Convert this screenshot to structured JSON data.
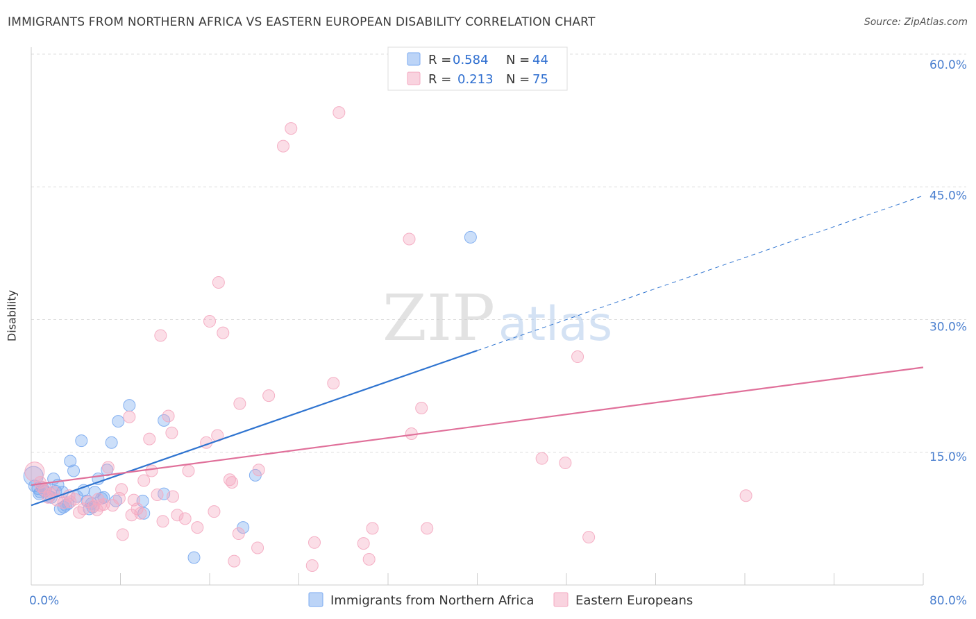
{
  "title": "IMMIGRANTS FROM NORTHERN AFRICA VS EASTERN EUROPEAN DISABILITY CORRELATION CHART",
  "source": "Source: ZipAtlas.com",
  "watermark": {
    "zip": "ZIP",
    "atlas": "atlas"
  },
  "chart_data": {
    "type": "scatter",
    "ylabel": "Disability",
    "xlim": [
      0,
      80
    ],
    "ylim": [
      0,
      60
    ],
    "x_tick_labels": [
      {
        "value": 0,
        "label": "0.0%"
      },
      {
        "value": 80,
        "label": "80.0%"
      }
    ],
    "y_tick_labels": [
      {
        "value": 15,
        "label": "15.0%"
      },
      {
        "value": 30,
        "label": "30.0%"
      },
      {
        "value": 45,
        "label": "45.0%"
      },
      {
        "value": 60,
        "label": "60.0%"
      }
    ],
    "grid": true,
    "legend_placement": "top-center",
    "series": [
      {
        "name": "Immigrants from Northern Africa",
        "color": "#7aaaf0",
        "line_color": "#2f74d0",
        "r_label": "R =",
        "r_value": "0.584",
        "n_label": "N =",
        "n_value": "44",
        "trend": {
          "x0": 0,
          "y0": 9.0,
          "x1": 40,
          "y1": 26.5,
          "dash_to_x": 80,
          "dash_to_y": 44.0
        },
        "points": [
          [
            0.2,
            12.3
          ],
          [
            0.3,
            11.2
          ],
          [
            0.6,
            10.9
          ],
          [
            0.8,
            10.5
          ],
          [
            1.0,
            11.0
          ],
          [
            1.2,
            10.6
          ],
          [
            1.3,
            10.9
          ],
          [
            1.6,
            10.0
          ],
          [
            1.8,
            9.9
          ],
          [
            2.0,
            12.0
          ],
          [
            2.2,
            10.6
          ],
          [
            2.4,
            11.3
          ],
          [
            2.6,
            8.6
          ],
          [
            2.8,
            10.5
          ],
          [
            3.1,
            9.0
          ],
          [
            3.3,
            9.2
          ],
          [
            3.5,
            14.0
          ],
          [
            3.8,
            12.9
          ],
          [
            4.1,
            10.0
          ],
          [
            4.5,
            16.3
          ],
          [
            4.7,
            10.7
          ],
          [
            5.0,
            9.5
          ],
          [
            5.2,
            8.6
          ],
          [
            5.5,
            8.8
          ],
          [
            5.7,
            10.5
          ],
          [
            6.0,
            12.0
          ],
          [
            6.3,
            9.8
          ],
          [
            6.5,
            9.9
          ],
          [
            6.8,
            13.0
          ],
          [
            7.2,
            16.1
          ],
          [
            7.6,
            9.5
          ],
          [
            7.8,
            18.5
          ],
          [
            8.8,
            20.3
          ],
          [
            10.0,
            9.5
          ],
          [
            10.1,
            8.1
          ],
          [
            11.9,
            18.6
          ],
          [
            11.9,
            10.3
          ],
          [
            14.6,
            3.1
          ],
          [
            19.0,
            6.5
          ],
          [
            20.1,
            12.4
          ],
          [
            39.4,
            39.3
          ],
          [
            5.4,
            9.2
          ],
          [
            2.9,
            8.8
          ],
          [
            0.7,
            10.3
          ]
        ]
      },
      {
        "name": "Eastern Europeans",
        "color": "#f4a8c0",
        "line_color": "#e0709a",
        "r_label": "R =",
        "r_value": "0.213",
        "n_label": "N =",
        "n_value": "75",
        "trend": {
          "x0": 0,
          "y0": 11.3,
          "x1": 80,
          "y1": 24.6
        },
        "points": [
          [
            0.3,
            12.8
          ],
          [
            0.8,
            11.6
          ],
          [
            1.2,
            10.7
          ],
          [
            1.7,
            10.3
          ],
          [
            2.3,
            9.6
          ],
          [
            2.9,
            9.3
          ],
          [
            3.4,
            10.1
          ],
          [
            3.9,
            9.7
          ],
          [
            4.3,
            8.2
          ],
          [
            4.7,
            8.6
          ],
          [
            5.1,
            9.4
          ],
          [
            5.6,
            8.9
          ],
          [
            6.0,
            9.7
          ],
          [
            6.5,
            9.1
          ],
          [
            6.9,
            13.3
          ],
          [
            7.3,
            9.0
          ],
          [
            7.9,
            9.8
          ],
          [
            8.1,
            10.8
          ],
          [
            8.2,
            5.7
          ],
          [
            8.8,
            19.0
          ],
          [
            9.2,
            9.6
          ],
          [
            9.5,
            8.6
          ],
          [
            9.8,
            8.1
          ],
          [
            10.1,
            11.8
          ],
          [
            10.6,
            16.5
          ],
          [
            10.8,
            12.9
          ],
          [
            11.3,
            10.2
          ],
          [
            11.6,
            28.2
          ],
          [
            11.8,
            7.2
          ],
          [
            12.3,
            19.1
          ],
          [
            12.6,
            17.2
          ],
          [
            12.7,
            10.0
          ],
          [
            13.8,
            7.5
          ],
          [
            14.1,
            12.9
          ],
          [
            14.9,
            6.5
          ],
          [
            15.7,
            16.1
          ],
          [
            16.0,
            29.8
          ],
          [
            16.4,
            8.3
          ],
          [
            16.7,
            16.9
          ],
          [
            16.8,
            34.2
          ],
          [
            17.2,
            28.5
          ],
          [
            17.8,
            11.9
          ],
          [
            18.0,
            11.6
          ],
          [
            18.2,
            2.7
          ],
          [
            18.6,
            5.8
          ],
          [
            18.7,
            20.5
          ],
          [
            20.3,
            4.2
          ],
          [
            20.4,
            13.0
          ],
          [
            21.3,
            21.4
          ],
          [
            22.6,
            49.6
          ],
          [
            23.3,
            51.6
          ],
          [
            25.2,
            2.2
          ],
          [
            25.4,
            4.8
          ],
          [
            27.1,
            22.8
          ],
          [
            27.6,
            53.4
          ],
          [
            29.8,
            4.7
          ],
          [
            30.3,
            2.9
          ],
          [
            30.6,
            6.4
          ],
          [
            33.9,
            39.1
          ],
          [
            34.1,
            17.1
          ],
          [
            35.0,
            20.0
          ],
          [
            35.5,
            6.4
          ],
          [
            45.8,
            14.3
          ],
          [
            47.9,
            13.8
          ],
          [
            49.0,
            25.8
          ],
          [
            50.0,
            5.4
          ],
          [
            64.1,
            10.1
          ],
          [
            3.5,
            9.4
          ],
          [
            6.2,
            9.0
          ],
          [
            1.5,
            9.9
          ],
          [
            9.0,
            7.9
          ],
          [
            13.1,
            7.9
          ],
          [
            5.9,
            8.5
          ],
          [
            0.9,
            11.1
          ],
          [
            2.0,
            10.5
          ]
        ]
      }
    ]
  }
}
